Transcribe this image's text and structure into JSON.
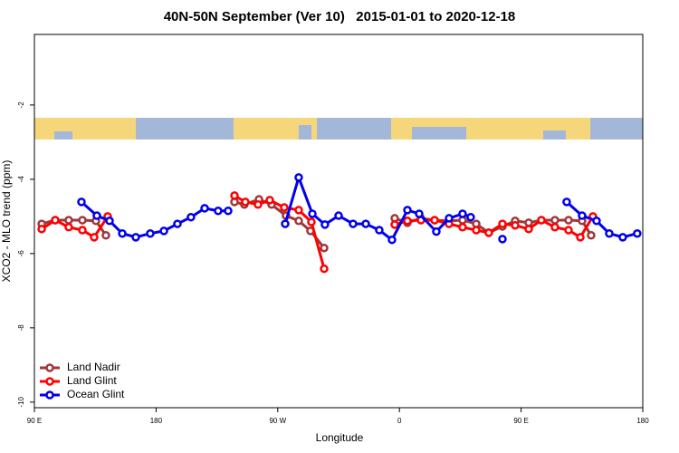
{
  "chart_data": {
    "type": "line",
    "title": "40N-50N September (Ver 10)   2015-01-01 to 2020-12-18",
    "x_label": "Longitude",
    "y_label": "XCO2 - MLO trend (ppm)",
    "xlim": [
      90,
      540
    ],
    "ylim": [
      -10.15,
      -0.1
    ],
    "xticks": [
      {
        "value": 90,
        "label": "90 E"
      },
      {
        "value": 180,
        "label": "180"
      },
      {
        "value": 270,
        "label": "90 W"
      },
      {
        "value": 360,
        "label": "0"
      },
      {
        "value": 450,
        "label": "90 E"
      },
      {
        "value": 540,
        "label": "180"
      }
    ],
    "yticks": [
      -10,
      -8,
      -6,
      -4,
      -2
    ],
    "legend": "bottom-left",
    "series": [
      {
        "name": "Land Nadir",
        "color": "#a0373a",
        "x": [
          95.4,
          105.4,
          115.4,
          125.5,
          135.5,
          142.9,
          null,
          238.0,
          245.3,
          256.1,
          265.4,
          276.1,
          285.5,
          294.2,
          304.3,
          null,
          356.5,
          365.9,
          375.9,
          386.0,
          396.7,
          406.7,
          416.8,
          426.1,
          436.2,
          445.6,
          455.6,
          465.0,
          475.0,
          485.1,
          495.1,
          501.8
        ],
        "values": [
          -5.2,
          -5.1,
          -5.1,
          -5.1,
          -5.12,
          -5.51,
          null,
          -4.61,
          -4.68,
          -4.54,
          -4.68,
          -4.98,
          -5.12,
          -5.39,
          -5.85,
          null,
          -5.05,
          -5.17,
          -5.05,
          -5.1,
          -5.12,
          -5.1,
          -5.2,
          -5.44,
          -5.27,
          -5.12,
          -5.17,
          -5.1,
          -5.1,
          -5.1,
          -5.12,
          -5.51
        ]
      },
      {
        "name": "Land Glint",
        "color": "#ff0000",
        "x": [
          95.4,
          105.4,
          115.4,
          125.5,
          134.2,
          144.2,
          null,
          238.0,
          246.0,
          255.4,
          264.1,
          274.8,
          285.5,
          294.9,
          304.3,
          null,
          356.5,
          365.9,
          375.9,
          386.0,
          396.7,
          406.7,
          416.8,
          426.1,
          436.2,
          445.6,
          455.6,
          465.0,
          475.0,
          485.1,
          493.8,
          503.1
        ],
        "values": [
          -5.34,
          -5.1,
          -5.29,
          -5.37,
          -5.56,
          -5.0,
          null,
          -4.44,
          -4.61,
          -4.68,
          -4.56,
          -4.76,
          -4.83,
          -5.15,
          -6.41,
          null,
          -5.22,
          -5.12,
          -5.1,
          -5.1,
          -5.2,
          -5.29,
          -5.37,
          -5.44,
          -5.2,
          -5.24,
          -5.34,
          -5.1,
          -5.29,
          -5.37,
          -5.56,
          -5.0
        ]
      },
      {
        "name": "Ocean Glint",
        "color": "#0000ee",
        "x": [
          124.8,
          136.2,
          145.6,
          155.0,
          165.0,
          175.7,
          185.8,
          195.8,
          205.8,
          215.9,
          225.9,
          233.3,
          null,
          275.5,
          285.5,
          295.6,
          304.9,
          315.0,
          325.7,
          335.1,
          345.1,
          354.5,
          365.9,
          374.6,
          387.3,
          396.7,
          406.7,
          412.7,
          null,
          436.2,
          null,
          483.7,
          495.1,
          505.8,
          515.2,
          525.2,
          535.9
        ],
        "values": [
          -4.61,
          -4.98,
          -5.12,
          -5.46,
          -5.56,
          -5.46,
          -5.39,
          -5.2,
          -5.02,
          -4.78,
          -4.85,
          -4.85,
          null,
          -5.2,
          -3.95,
          -4.93,
          -5.22,
          -4.98,
          -5.2,
          -5.2,
          -5.37,
          -5.63,
          -4.83,
          -4.93,
          -5.41,
          -5.05,
          -4.93,
          -5.02,
          null,
          -5.61,
          null,
          -4.61,
          -4.98,
          -5.12,
          -5.46,
          -5.56,
          -5.46
        ]
      }
    ]
  }
}
